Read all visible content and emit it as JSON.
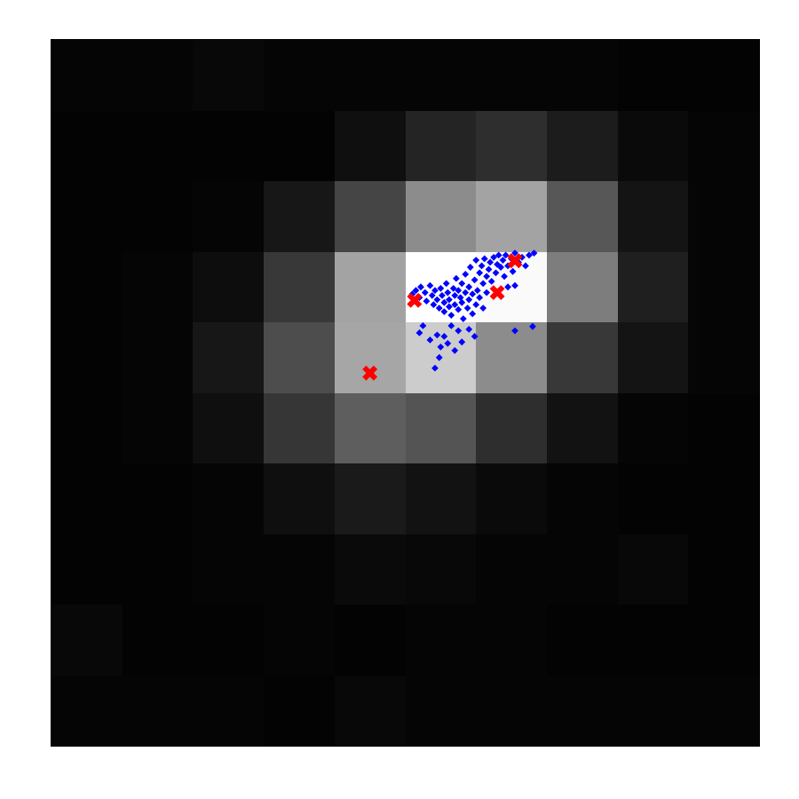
{
  "chart_data": {
    "type": "heatmap",
    "tick_labels": false,
    "grid": false,
    "xlim": [
      0.5,
      10.5
    ],
    "ylim": [
      10.5,
      0.5
    ],
    "zlim": [
      0,
      1
    ],
    "cells": [
      [
        0.02,
        0.02,
        0.03,
        0.02,
        0.02,
        0.02,
        0.02,
        0.02,
        0.01,
        0.01
      ],
      [
        0.01,
        0.01,
        0.01,
        0.01,
        0.06,
        0.14,
        0.18,
        0.11,
        0.04,
        0.02
      ],
      [
        0.01,
        0.01,
        0.02,
        0.09,
        0.27,
        0.55,
        0.64,
        0.34,
        0.08,
        0.02
      ],
      [
        0.01,
        0.02,
        0.05,
        0.22,
        0.64,
        1.0,
        0.98,
        0.49,
        0.12,
        0.02
      ],
      [
        0.01,
        0.02,
        0.09,
        0.3,
        0.65,
        0.8,
        0.55,
        0.22,
        0.08,
        0.02
      ],
      [
        0.01,
        0.02,
        0.06,
        0.21,
        0.37,
        0.33,
        0.18,
        0.07,
        0.02,
        0.01
      ],
      [
        0.01,
        0.01,
        0.02,
        0.06,
        0.1,
        0.07,
        0.04,
        0.02,
        0.01,
        0.01
      ],
      [
        0.01,
        0.01,
        0.02,
        0.02,
        0.04,
        0.03,
        0.02,
        0.02,
        0.03,
        0.01
      ],
      [
        0.03,
        0.01,
        0.01,
        0.02,
        0.01,
        0.02,
        0.02,
        0.01,
        0.01,
        0.01
      ],
      [
        0.02,
        0.02,
        0.02,
        0.01,
        0.03,
        0.02,
        0.02,
        0.02,
        0.02,
        0.02
      ]
    ],
    "series": [
      {
        "type": "scatter",
        "marker": "diamond",
        "color": "#0000ff",
        "x": [
          5.6,
          5.65,
          5.7,
          5.72,
          5.78,
          5.8,
          5.85,
          5.88,
          5.9,
          5.92,
          5.95,
          5.98,
          6.0,
          6.02,
          6.05,
          6.05,
          6.08,
          6.1,
          6.12,
          6.12,
          6.15,
          6.18,
          6.2,
          6.2,
          6.22,
          6.25,
          6.25,
          6.28,
          6.3,
          6.3,
          6.32,
          6.35,
          6.35,
          6.38,
          6.4,
          6.4,
          6.42,
          6.45,
          6.45,
          6.48,
          6.5,
          6.5,
          6.52,
          6.55,
          6.55,
          6.58,
          6.6,
          6.6,
          6.62,
          6.65,
          6.65,
          6.68,
          6.7,
          6.72,
          6.75,
          6.78,
          6.8,
          6.82,
          6.85,
          6.88,
          6.9,
          6.92,
          6.95,
          7.0,
          7.02,
          7.05,
          7.1,
          7.15,
          7.2,
          7.25,
          7.32,
          7.05,
          6.95,
          7.3,
          7.05,
          6.4,
          6.25,
          6.15,
          6.05,
          5.95,
          5.85,
          6.0,
          5.92,
          5.98,
          6.1,
          6.2,
          6.3,
          5.7,
          5.75,
          6.48
        ],
        "y": [
          4.1,
          4.05,
          4.15,
          4.0,
          4.08,
          4.2,
          3.98,
          4.12,
          4.25,
          4.05,
          4.18,
          4.3,
          4.02,
          4.12,
          4.22,
          4.35,
          3.95,
          4.08,
          4.18,
          4.28,
          4.4,
          4.02,
          4.12,
          4.25,
          3.88,
          4.05,
          4.32,
          4.15,
          3.95,
          4.22,
          4.45,
          4.08,
          3.82,
          4.3,
          4.0,
          4.18,
          3.72,
          4.1,
          4.38,
          3.9,
          4.25,
          3.62,
          4.05,
          3.8,
          4.15,
          3.7,
          3.95,
          4.3,
          3.6,
          3.85,
          4.08,
          3.75,
          3.65,
          3.92,
          3.58,
          3.8,
          3.68,
          3.55,
          3.72,
          3.62,
          3.85,
          3.55,
          3.7,
          3.6,
          3.78,
          3.52,
          3.65,
          3.58,
          3.7,
          3.55,
          3.52,
          3.98,
          4.0,
          4.56,
          4.62,
          4.6,
          4.62,
          4.55,
          4.7,
          4.68,
          4.75,
          4.85,
          5.15,
          5.0,
          4.8,
          4.9,
          4.78,
          4.65,
          4.55,
          4.7
        ]
      },
      {
        "type": "scatter",
        "marker": "x",
        "color": "#ff0000",
        "x": [
          7.05,
          6.8,
          5.63,
          5.0
        ],
        "y": [
          3.63,
          4.08,
          4.19,
          5.22
        ]
      }
    ]
  }
}
